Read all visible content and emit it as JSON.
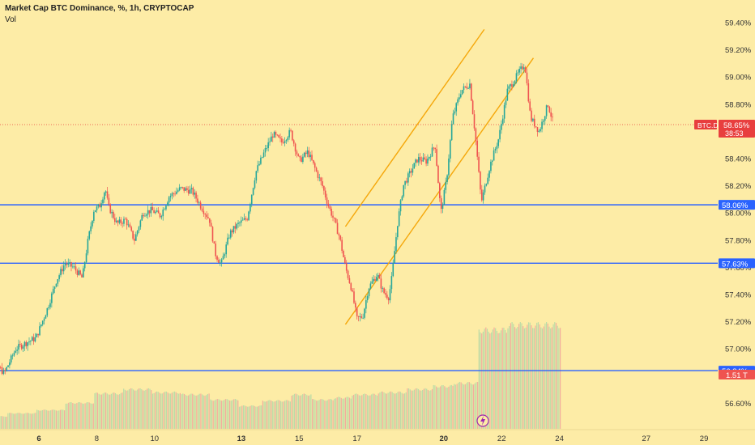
{
  "header": {
    "title": "Market Cap BTC Dominance, %, 1h, CRYPTOCAP",
    "volume_label": "Vol"
  },
  "colors": {
    "background": "#fdeca6",
    "up": "#26a69a",
    "down": "#ef5350",
    "channel": "#f5a70a",
    "level": "#2962ff",
    "price_tag": "#e83e3e"
  },
  "chart_data": {
    "type": "candlestick",
    "symbol": "BTC.D",
    "x_axis": {
      "tick_labels": [
        "6",
        "8",
        "10",
        "13",
        "15",
        "17",
        "20",
        "22",
        "24",
        "27",
        "29"
      ],
      "bold_ticks": [
        "6",
        "13",
        "20"
      ]
    },
    "y_axis": {
      "unit": "%",
      "ylim": [
        56.52,
        59.47
      ],
      "tick_labels": [
        "59.40%",
        "59.20%",
        "59.00%",
        "58.80%",
        "58.60%",
        "58.40%",
        "58.20%",
        "58.00%",
        "57.80%",
        "57.60%",
        "57.40%",
        "57.20%",
        "57.00%",
        "56.80%",
        "56.60%"
      ]
    },
    "current_price": {
      "label": "BTC.D",
      "value": "58.65%",
      "countdown": "38:53",
      "value_num": 58.65
    },
    "volume_tag": "1.51 T",
    "horizontal_levels": [
      {
        "value": 58.06,
        "label": "58.06%"
      },
      {
        "value": 57.63,
        "label": "57.63%"
      },
      {
        "value": 56.84,
        "label": "56.84%"
      }
    ],
    "channel": {
      "upper": [
        [
          16.6,
          57.9
        ],
        [
          21.4,
          59.35
        ]
      ],
      "lower": [
        [
          16.6,
          57.18
        ],
        [
          23.1,
          59.14
        ]
      ]
    },
    "price_path": [
      [
        4.0,
        56.9
      ],
      [
        4.3,
        56.94
      ],
      [
        4.8,
        56.82
      ],
      [
        5.2,
        57.0
      ],
      [
        5.6,
        57.05
      ],
      [
        5.9,
        57.08
      ],
      [
        6.3,
        57.3
      ],
      [
        6.6,
        57.5
      ],
      [
        6.9,
        57.63
      ],
      [
        7.2,
        57.6
      ],
      [
        7.5,
        57.52
      ],
      [
        7.7,
        57.8
      ],
      [
        7.9,
        58.02
      ],
      [
        8.1,
        58.05
      ],
      [
        8.3,
        58.18
      ],
      [
        8.4,
        58.05
      ],
      [
        8.7,
        57.92
      ],
      [
        9.0,
        57.95
      ],
      [
        9.3,
        57.8
      ],
      [
        9.6,
        58.0
      ],
      [
        9.9,
        58.02
      ],
      [
        10.2,
        57.98
      ],
      [
        10.5,
        58.12
      ],
      [
        10.9,
        58.18
      ],
      [
        11.3,
        58.16
      ],
      [
        11.6,
        58.05
      ],
      [
        11.9,
        57.95
      ],
      [
        12.1,
        57.7
      ],
      [
        12.3,
        57.62
      ],
      [
        12.6,
        57.85
      ],
      [
        12.9,
        57.92
      ],
      [
        13.2,
        57.96
      ],
      [
        13.5,
        58.3
      ],
      [
        13.8,
        58.45
      ],
      [
        14.1,
        58.58
      ],
      [
        14.4,
        58.52
      ],
      [
        14.7,
        58.6
      ],
      [
        15.0,
        58.38
      ],
      [
        15.3,
        58.45
      ],
      [
        15.6,
        58.3
      ],
      [
        15.8,
        58.2
      ],
      [
        16.0,
        58.06
      ],
      [
        16.2,
        57.95
      ],
      [
        16.4,
        57.82
      ],
      [
        16.6,
        57.6
      ],
      [
        16.8,
        57.45
      ],
      [
        17.0,
        57.22
      ],
      [
        17.2,
        57.24
      ],
      [
        17.4,
        57.45
      ],
      [
        17.7,
        57.55
      ],
      [
        17.9,
        57.42
      ],
      [
        18.1,
        57.38
      ],
      [
        18.2,
        57.52
      ],
      [
        18.4,
        57.92
      ],
      [
        18.6,
        58.2
      ],
      [
        18.9,
        58.32
      ],
      [
        19.1,
        58.4
      ],
      [
        19.4,
        58.38
      ],
      [
        19.7,
        58.5
      ],
      [
        19.9,
        58.0
      ],
      [
        20.1,
        58.25
      ],
      [
        20.3,
        58.7
      ],
      [
        20.6,
        58.9
      ],
      [
        20.9,
        58.95
      ],
      [
        21.1,
        58.55
      ],
      [
        21.3,
        58.08
      ],
      [
        21.6,
        58.35
      ],
      [
        21.9,
        58.55
      ],
      [
        22.2,
        58.9
      ],
      [
        22.5,
        59.0
      ],
      [
        22.8,
        59.1
      ],
      [
        23.0,
        58.7
      ],
      [
        23.3,
        58.6
      ],
      [
        23.6,
        58.8
      ],
      [
        23.8,
        58.65
      ]
    ],
    "volume_steps": [
      [
        4.0,
        0.12
      ],
      [
        4.9,
        0.15
      ],
      [
        5.9,
        0.18
      ],
      [
        6.9,
        0.25
      ],
      [
        7.9,
        0.34
      ],
      [
        8.9,
        0.38
      ],
      [
        9.9,
        0.35
      ],
      [
        10.9,
        0.33
      ],
      [
        11.9,
        0.28
      ],
      [
        12.9,
        0.22
      ],
      [
        13.7,
        0.27
      ],
      [
        14.7,
        0.33
      ],
      [
        15.4,
        0.28
      ],
      [
        16.2,
        0.3
      ],
      [
        16.8,
        0.33
      ],
      [
        17.7,
        0.35
      ],
      [
        18.7,
        0.38
      ],
      [
        19.6,
        0.41
      ],
      [
        20.3,
        0.44
      ],
      [
        21.2,
        0.95
      ],
      [
        22.2,
        1.0
      ]
    ]
  }
}
